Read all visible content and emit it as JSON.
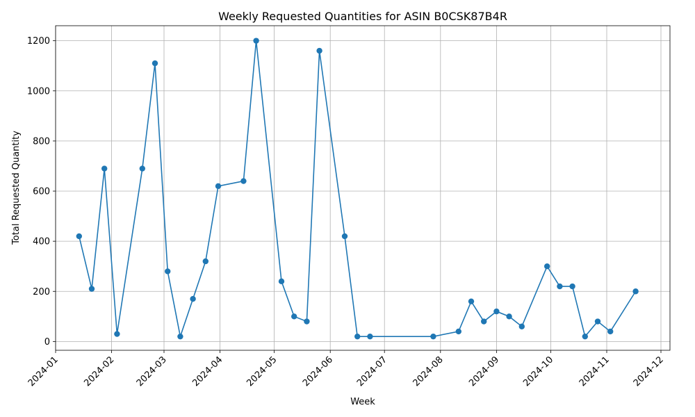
{
  "chart_data": {
    "type": "line",
    "title": "Weekly Requested Quantities for ASIN B0CSK87B4R",
    "xlabel": "Week",
    "ylabel": "Total Requested Quantity",
    "x_ticks": [
      "2024-01",
      "2024-02",
      "2024-03",
      "2024-04",
      "2024-05",
      "2024-06",
      "2024-07",
      "2024-08",
      "2024-09",
      "2024-10",
      "2024-11",
      "2024-12"
    ],
    "y_ticks": [
      0,
      200,
      400,
      600,
      800,
      1000,
      1200
    ],
    "xlim": [
      "2024-01-01",
      "2024-12-06"
    ],
    "ylim": [
      -35,
      1260
    ],
    "grid": true,
    "line_color": "#1f77b4",
    "marker": "circle",
    "series": [
      {
        "x": [
          "2024-01-14",
          "2024-01-21",
          "2024-01-28",
          "2024-02-04",
          "2024-02-18",
          "2024-02-25",
          "2024-03-03",
          "2024-03-10",
          "2024-03-17",
          "2024-03-24",
          "2024-03-31",
          "2024-04-14",
          "2024-04-21",
          "2024-05-05",
          "2024-05-12",
          "2024-05-19",
          "2024-05-26",
          "2024-06-09",
          "2024-06-16",
          "2024-06-23",
          "2024-07-28",
          "2024-08-11",
          "2024-08-18",
          "2024-08-25",
          "2024-09-01",
          "2024-09-08",
          "2024-09-15",
          "2024-09-29",
          "2024-10-06",
          "2024-10-13",
          "2024-10-20",
          "2024-10-27",
          "2024-11-03",
          "2024-11-17"
        ],
        "values": [
          420,
          210,
          690,
          30,
          690,
          1110,
          280,
          20,
          170,
          320,
          620,
          640,
          1200,
          240,
          100,
          80,
          1160,
          420,
          20,
          20,
          20,
          40,
          160,
          80,
          120,
          100,
          60,
          300,
          220,
          220,
          20,
          80,
          40,
          200
        ]
      }
    ]
  }
}
